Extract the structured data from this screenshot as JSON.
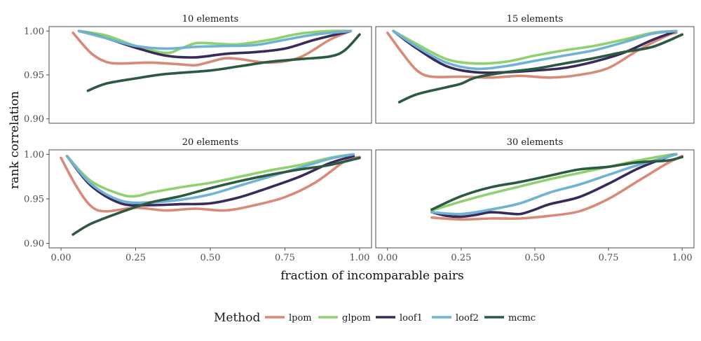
{
  "chart_data": {
    "type": "line",
    "xlabel": "fraction of incomparable pairs",
    "ylabel": "rank correlation",
    "xlim": [
      -0.04,
      1.04
    ],
    "ylim": [
      0.895,
      1.005
    ],
    "x_ticks": [
      0.0,
      0.25,
      0.5,
      0.75,
      1.0
    ],
    "x_tick_labels": [
      "0.00",
      "0.25",
      "0.50",
      "0.75",
      "1.00"
    ],
    "y_ticks": [
      0.9,
      0.95,
      1.0
    ],
    "y_tick_labels": [
      "0.90",
      "0.95",
      "1.00"
    ],
    "grid": false,
    "legend": {
      "title": "Method",
      "position": "bottom",
      "entries": [
        "lpom",
        "glpom",
        "loof1",
        "loof2",
        "mcmc"
      ]
    },
    "colors": {
      "lpom": "#d98a77",
      "glpom": "#8fd16f",
      "loof1": "#3a2a5c",
      "loof2": "#6fb3d2",
      "mcmc": "#2b5a41"
    },
    "panels": [
      {
        "title": "10 elements",
        "series": [
          {
            "name": "lpom",
            "x": [
              0.04,
              0.1,
              0.15,
              0.2,
              0.3,
              0.4,
              0.45,
              0.5,
              0.55,
              0.6,
              0.7,
              0.8,
              0.9,
              0.97
            ],
            "y": [
              0.998,
              0.975,
              0.965,
              0.963,
              0.964,
              0.962,
              0.961,
              0.965,
              0.969,
              0.968,
              0.964,
              0.97,
              0.99,
              1.0
            ]
          },
          {
            "name": "glpom",
            "x": [
              0.06,
              0.15,
              0.25,
              0.35,
              0.4,
              0.45,
              0.5,
              0.55,
              0.6,
              0.7,
              0.8,
              0.9,
              0.97
            ],
            "y": [
              1.0,
              0.995,
              0.983,
              0.975,
              0.98,
              0.986,
              0.986,
              0.985,
              0.985,
              0.99,
              0.997,
              1.0,
              1.0
            ]
          },
          {
            "name": "loof1",
            "x": [
              0.06,
              0.15,
              0.25,
              0.35,
              0.45,
              0.55,
              0.65,
              0.75,
              0.85,
              0.97
            ],
            "y": [
              1.0,
              0.992,
              0.981,
              0.972,
              0.97,
              0.974,
              0.976,
              0.98,
              0.99,
              1.0
            ]
          },
          {
            "name": "loof2",
            "x": [
              0.06,
              0.15,
              0.25,
              0.35,
              0.45,
              0.55,
              0.65,
              0.75,
              0.85,
              0.97
            ],
            "y": [
              1.0,
              0.992,
              0.983,
              0.98,
              0.982,
              0.983,
              0.984,
              0.99,
              0.996,
              1.0
            ]
          },
          {
            "name": "mcmc",
            "x": [
              0.09,
              0.15,
              0.25,
              0.35,
              0.5,
              0.6,
              0.7,
              0.8,
              0.9,
              0.95,
              1.0
            ],
            "y": [
              0.932,
              0.94,
              0.946,
              0.951,
              0.955,
              0.96,
              0.965,
              0.968,
              0.971,
              0.978,
              0.996
            ]
          }
        ]
      },
      {
        "title": "15 elements",
        "series": [
          {
            "name": "lpom",
            "x": [
              0.0,
              0.05,
              0.1,
              0.15,
              0.25,
              0.35,
              0.45,
              0.55,
              0.65,
              0.75,
              0.85,
              0.95,
              0.98
            ],
            "y": [
              0.998,
              0.975,
              0.955,
              0.948,
              0.948,
              0.947,
              0.949,
              0.947,
              0.95,
              0.958,
              0.978,
              0.995,
              0.998
            ]
          },
          {
            "name": "glpom",
            "x": [
              0.02,
              0.1,
              0.2,
              0.3,
              0.4,
              0.5,
              0.6,
              0.7,
              0.8,
              0.9,
              0.98
            ],
            "y": [
              1.0,
              0.985,
              0.968,
              0.963,
              0.965,
              0.972,
              0.978,
              0.983,
              0.99,
              0.998,
              1.0
            ]
          },
          {
            "name": "loof1",
            "x": [
              0.02,
              0.1,
              0.2,
              0.3,
              0.4,
              0.5,
              0.6,
              0.7,
              0.8,
              0.9,
              0.98
            ],
            "y": [
              1.0,
              0.98,
              0.96,
              0.953,
              0.953,
              0.955,
              0.958,
              0.965,
              0.975,
              0.99,
              1.0
            ]
          },
          {
            "name": "loof2",
            "x": [
              0.02,
              0.1,
              0.2,
              0.3,
              0.4,
              0.5,
              0.6,
              0.7,
              0.8,
              0.9,
              0.98
            ],
            "y": [
              1.0,
              0.982,
              0.964,
              0.957,
              0.96,
              0.966,
              0.972,
              0.978,
              0.987,
              0.997,
              1.0
            ]
          },
          {
            "name": "mcmc",
            "x": [
              0.04,
              0.1,
              0.2,
              0.25,
              0.3,
              0.4,
              0.5,
              0.6,
              0.7,
              0.8,
              0.9,
              1.0
            ],
            "y": [
              0.919,
              0.928,
              0.936,
              0.94,
              0.947,
              0.953,
              0.957,
              0.963,
              0.969,
              0.976,
              0.982,
              0.996
            ]
          }
        ]
      },
      {
        "title": "20 elements",
        "series": [
          {
            "name": "lpom",
            "x": [
              0.0,
              0.05,
              0.1,
              0.15,
              0.25,
              0.35,
              0.45,
              0.55,
              0.65,
              0.75,
              0.85,
              0.95,
              1.0
            ],
            "y": [
              0.996,
              0.965,
              0.942,
              0.936,
              0.94,
              0.937,
              0.939,
              0.937,
              0.943,
              0.952,
              0.968,
              0.992,
              0.997
            ]
          },
          {
            "name": "glpom",
            "x": [
              0.02,
              0.1,
              0.2,
              0.25,
              0.3,
              0.4,
              0.5,
              0.6,
              0.7,
              0.8,
              0.9,
              0.98
            ],
            "y": [
              0.998,
              0.97,
              0.955,
              0.953,
              0.957,
              0.963,
              0.968,
              0.975,
              0.982,
              0.988,
              0.996,
              1.0
            ]
          },
          {
            "name": "loof1",
            "x": [
              0.02,
              0.1,
              0.2,
              0.3,
              0.4,
              0.5,
              0.6,
              0.7,
              0.8,
              0.9,
              0.98
            ],
            "y": [
              0.998,
              0.965,
              0.945,
              0.943,
              0.944,
              0.945,
              0.952,
              0.963,
              0.975,
              0.99,
              0.998
            ]
          },
          {
            "name": "loof2",
            "x": [
              0.02,
              0.1,
              0.2,
              0.3,
              0.4,
              0.5,
              0.6,
              0.7,
              0.8,
              0.9,
              0.98
            ],
            "y": [
              0.998,
              0.967,
              0.948,
              0.946,
              0.949,
              0.955,
              0.965,
              0.975,
              0.985,
              0.995,
              1.0
            ]
          },
          {
            "name": "mcmc",
            "x": [
              0.04,
              0.1,
              0.2,
              0.3,
              0.4,
              0.5,
              0.6,
              0.7,
              0.8,
              0.9,
              1.0
            ],
            "y": [
              0.91,
              0.922,
              0.935,
              0.946,
              0.953,
              0.962,
              0.97,
              0.977,
              0.983,
              0.988,
              0.996
            ]
          }
        ]
      },
      {
        "title": "30 elements",
        "series": [
          {
            "name": "lpom",
            "x": [
              0.15,
              0.25,
              0.35,
              0.45,
              0.55,
              0.65,
              0.75,
              0.85,
              0.95,
              1.0
            ],
            "y": [
              0.929,
              0.927,
              0.928,
              0.928,
              0.931,
              0.936,
              0.95,
              0.97,
              0.99,
              0.998
            ]
          },
          {
            "name": "glpom",
            "x": [
              0.15,
              0.25,
              0.35,
              0.45,
              0.55,
              0.65,
              0.75,
              0.85,
              0.95,
              0.98
            ],
            "y": [
              0.937,
              0.947,
              0.956,
              0.964,
              0.972,
              0.979,
              0.986,
              0.993,
              0.999,
              1.0
            ]
          },
          {
            "name": "loof1",
            "x": [
              0.15,
              0.2,
              0.25,
              0.3,
              0.35,
              0.4,
              0.45,
              0.5,
              0.55,
              0.65,
              0.75,
              0.85,
              0.95,
              0.98
            ],
            "y": [
              0.935,
              0.931,
              0.93,
              0.932,
              0.935,
              0.934,
              0.933,
              0.938,
              0.944,
              0.952,
              0.967,
              0.984,
              0.997,
              1.0
            ]
          },
          {
            "name": "loof2",
            "x": [
              0.15,
              0.25,
              0.35,
              0.45,
              0.55,
              0.65,
              0.75,
              0.85,
              0.95,
              0.98
            ],
            "y": [
              0.935,
              0.933,
              0.938,
              0.945,
              0.957,
              0.966,
              0.977,
              0.988,
              0.997,
              1.0
            ]
          },
          {
            "name": "mcmc",
            "x": [
              0.15,
              0.25,
              0.35,
              0.45,
              0.55,
              0.65,
              0.75,
              0.85,
              0.95,
              1.0
            ],
            "y": [
              0.938,
              0.953,
              0.963,
              0.969,
              0.976,
              0.983,
              0.986,
              0.991,
              0.993,
              0.997
            ]
          }
        ]
      }
    ]
  }
}
